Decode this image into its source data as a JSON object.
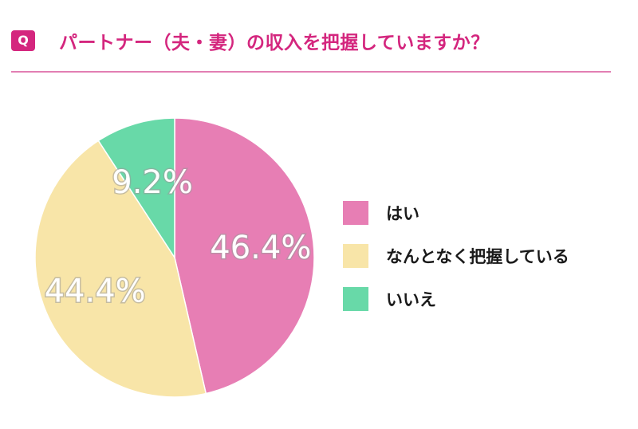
{
  "header": {
    "badge": "Q",
    "title": "パートナー（夫・妻）の収入を把握していますか？"
  },
  "colors": {
    "accent": "#d4267e",
    "divider": "#e27fb3"
  },
  "chart_data": {
    "type": "pie",
    "title": "パートナー（夫・妻）の収入を把握していますか？",
    "legend_position": "right",
    "slices": [
      {
        "label": "はい",
        "value": 46.4,
        "display": "46.4%",
        "color": "#e77eb4"
      },
      {
        "label": "なんとなく把握している",
        "value": 44.4,
        "display": "44.4%",
        "color": "#f8e5a8"
      },
      {
        "label": "いいえ",
        "value": 9.2,
        "display": "9.2%",
        "color": "#68d9a8"
      }
    ]
  }
}
